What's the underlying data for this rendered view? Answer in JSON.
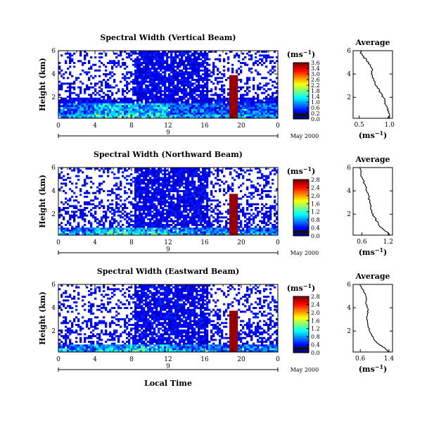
{
  "chart_data": [
    {
      "type": "heatmap",
      "title": "Spectral Width (Vertical Beam)",
      "ylabel": "Height (km)",
      "yticks": [
        "6",
        "4",
        "2"
      ],
      "ylim": [
        0.2,
        6
      ],
      "xticks": [
        "0",
        "4",
        "8",
        "12",
        "16",
        "20",
        "0"
      ],
      "xlim": [
        0,
        24
      ],
      "day_label": "9",
      "date_label": "May 2000",
      "colorbar": {
        "unit": "(ms",
        "exp": "−1",
        "unit_close": ")",
        "labels": [
          "3.6",
          "3.4",
          "3.0",
          "2.6",
          "2.2",
          "1.8",
          "1.4",
          "1.0",
          "0.6",
          "0.2",
          "0.0"
        ],
        "max": 3.6
      },
      "profile": {
        "title": "Average",
        "xlabel": "(ms",
        "exp": "−1",
        "xlabel_close": ")",
        "xticks": [
          "0.5",
          "1.0"
        ],
        "xlim": [
          0.4,
          1.05
        ],
        "yticks": [
          "6",
          "4",
          "2"
        ],
        "ylim": [
          0.2,
          6
        ],
        "heights": [
          6.0,
          5.6,
          5.2,
          4.8,
          4.4,
          4.0,
          3.6,
          3.2,
          2.8,
          2.4,
          2.0,
          1.6,
          1.2,
          0.8,
          0.4,
          0.2
        ],
        "values": [
          0.52,
          0.55,
          0.62,
          0.68,
          0.72,
          0.7,
          0.74,
          0.76,
          0.8,
          0.86,
          0.9,
          0.93,
          0.96,
          0.99,
          1.0,
          0.98
        ]
      }
    },
    {
      "type": "heatmap",
      "title": "Spectral Width (Northward Beam)",
      "ylabel": "Height (km)",
      "yticks": [
        "6",
        "4",
        "2"
      ],
      "ylim": [
        0.2,
        6
      ],
      "xticks": [
        "0",
        "4",
        "8",
        "12",
        "16",
        "20",
        "0"
      ],
      "xlim": [
        0,
        24
      ],
      "day_label": "9",
      "date_label": "May 2000",
      "colorbar": {
        "unit": "(ms",
        "exp": "−1",
        "unit_close": ")",
        "labels": [
          "2.8",
          "2.4",
          "2.0",
          "1.6",
          "1.2",
          "0.8",
          "0.4",
          "0.0"
        ],
        "max": 2.8
      },
      "profile": {
        "title": "Average",
        "xlabel": "(ms",
        "exp": "−1",
        "xlabel_close": ")",
        "xticks": [
          "0.6",
          "1.2"
        ],
        "xlim": [
          0.4,
          1.3
        ],
        "yticks": [
          "6",
          "4",
          "2"
        ],
        "ylim": [
          0.2,
          6
        ],
        "heights": [
          6.0,
          5.4,
          5.0,
          4.6,
          4.2,
          3.8,
          3.4,
          3.0,
          2.6,
          2.2,
          1.8,
          1.4,
          1.0,
          0.6,
          0.4,
          0.2
        ],
        "values": [
          0.55,
          0.58,
          0.62,
          0.66,
          0.7,
          0.74,
          0.76,
          0.78,
          0.8,
          0.82,
          0.88,
          0.94,
          1.0,
          1.12,
          1.2,
          1.22
        ]
      }
    },
    {
      "type": "heatmap",
      "title": "Spectral Width (Eastward Beam)",
      "ylabel": "Height (km)",
      "yticks": [
        "6",
        "4",
        "2"
      ],
      "ylim": [
        0.2,
        6
      ],
      "xticks": [
        "0",
        "4",
        "8",
        "12",
        "16",
        "20",
        "0"
      ],
      "xlim": [
        0,
        24
      ],
      "day_label": "9",
      "date_label": "May 2000",
      "xlabel": "Local Time",
      "colorbar": {
        "unit": "(ms",
        "exp": "−1",
        "unit_close": ")",
        "labels": [
          "2.8",
          "2.4",
          "2.0",
          "1.6",
          "1.2",
          "0.8",
          "0.4",
          "0.0"
        ],
        "max": 2.8
      },
      "profile": {
        "title": "Average",
        "xlabel": "(ms",
        "exp": "−1",
        "xlabel_close": ")",
        "xticks": [
          "0.6",
          "1.4"
        ],
        "xlim": [
          0.4,
          1.5
        ],
        "yticks": [
          "6",
          "4",
          "2"
        ],
        "ylim": [
          0.2,
          6
        ],
        "heights": [
          6.0,
          5.6,
          5.2,
          4.8,
          4.4,
          4.0,
          3.6,
          3.2,
          2.8,
          2.4,
          2.0,
          1.6,
          1.2,
          0.8,
          0.5,
          0.2
        ],
        "values": [
          0.6,
          0.66,
          0.74,
          0.78,
          0.75,
          0.8,
          0.82,
          0.78,
          0.8,
          0.82,
          0.86,
          0.92,
          1.0,
          1.15,
          1.3,
          1.4
        ]
      }
    }
  ]
}
